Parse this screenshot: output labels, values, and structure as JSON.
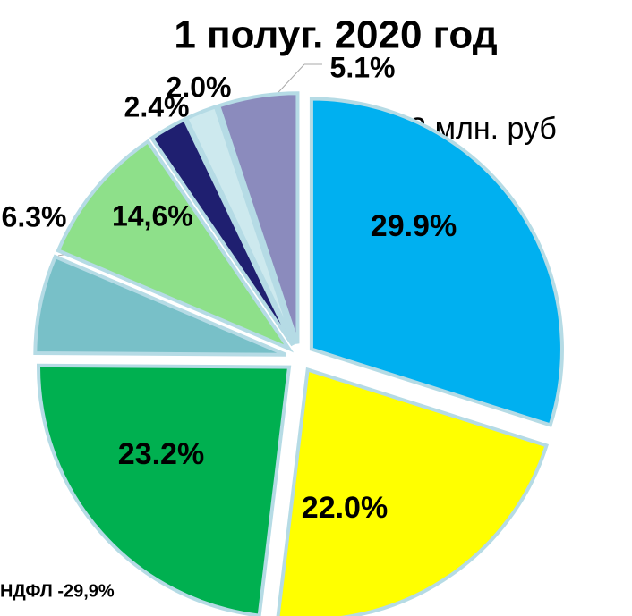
{
  "chart_data": {
    "type": "pie",
    "title": "1 полуг. 2020 год",
    "annotations": [
      "12,3 млн. руб",
      "14,6%",
      "НДФЛ -29,9%"
    ],
    "values": [
      29.9,
      22.0,
      23.2,
      6.3,
      9.1,
      2.4,
      2.0,
      5.1
    ],
    "value_labels": [
      "29.9%",
      "22.0%",
      "23.2%",
      "6.3%",
      null,
      "2.4%",
      "2.0%",
      "5.1%"
    ],
    "colors": [
      "#00b0f0",
      "#ffff00",
      "#00b050",
      "#78c0c8",
      "#8ee08a",
      "#1f1f70",
      "#cde9ee",
      "#8b8bbd"
    ]
  }
}
